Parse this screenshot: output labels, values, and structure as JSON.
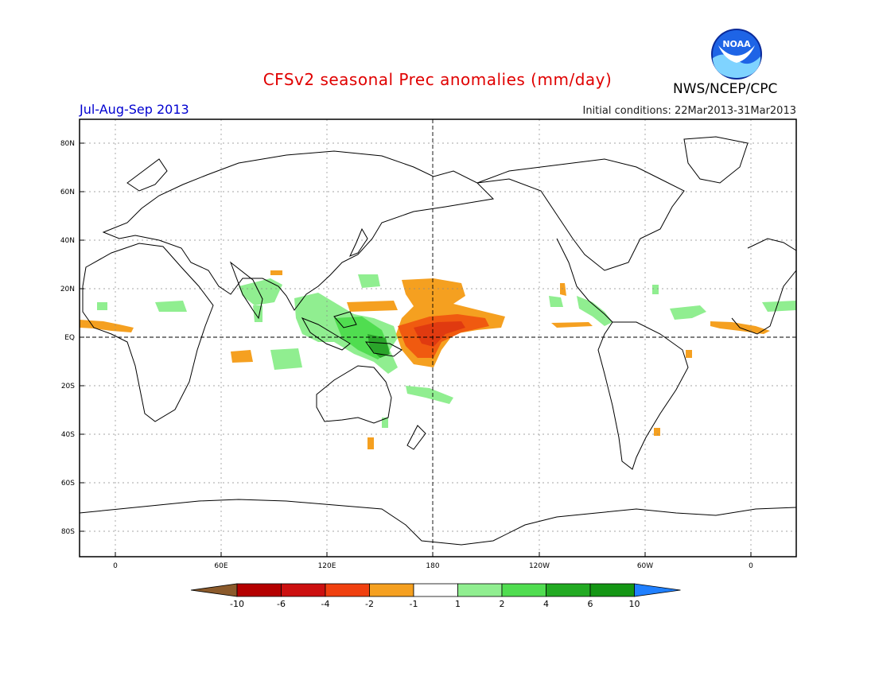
{
  "header": {
    "title": "CFSv2 seasonal Prec anomalies (mm/day)",
    "period": "Jul-Aug-Sep 2013",
    "initial_conditions": "Initial conditions: 22Mar2013-31Mar2013",
    "agency": "NWS/NCEP/CPC",
    "logo_text": "NOAA"
  },
  "axes": {
    "lat_labels": [
      "80N",
      "60N",
      "40N",
      "20N",
      "EQ",
      "20S",
      "40S",
      "60S",
      "80S"
    ],
    "lon_labels": [
      "0",
      "60E",
      "120E",
      "180",
      "120W",
      "60W",
      "0"
    ]
  },
  "colorbar": {
    "labels": [
      "-10",
      "-6",
      "-4",
      "-2",
      "-1",
      "1",
      "2",
      "4",
      "6",
      "10"
    ],
    "colors": [
      "#8b5a2b",
      "#b40000",
      "#cc1010",
      "#f04010",
      "#f5a020",
      "#ffffff",
      "#90ee90",
      "#50dd50",
      "#22aa22",
      "#149614",
      "#2080ff"
    ]
  },
  "colors": {
    "title": "#e00000",
    "period": "#0000d0",
    "positive_light": "#90ee90",
    "positive_mid": "#50dd50",
    "positive_dark": "#2aa52a",
    "negative_light": "#f5a020",
    "negative_mid": "#f05a10",
    "negative_dark": "#e03a10"
  }
}
